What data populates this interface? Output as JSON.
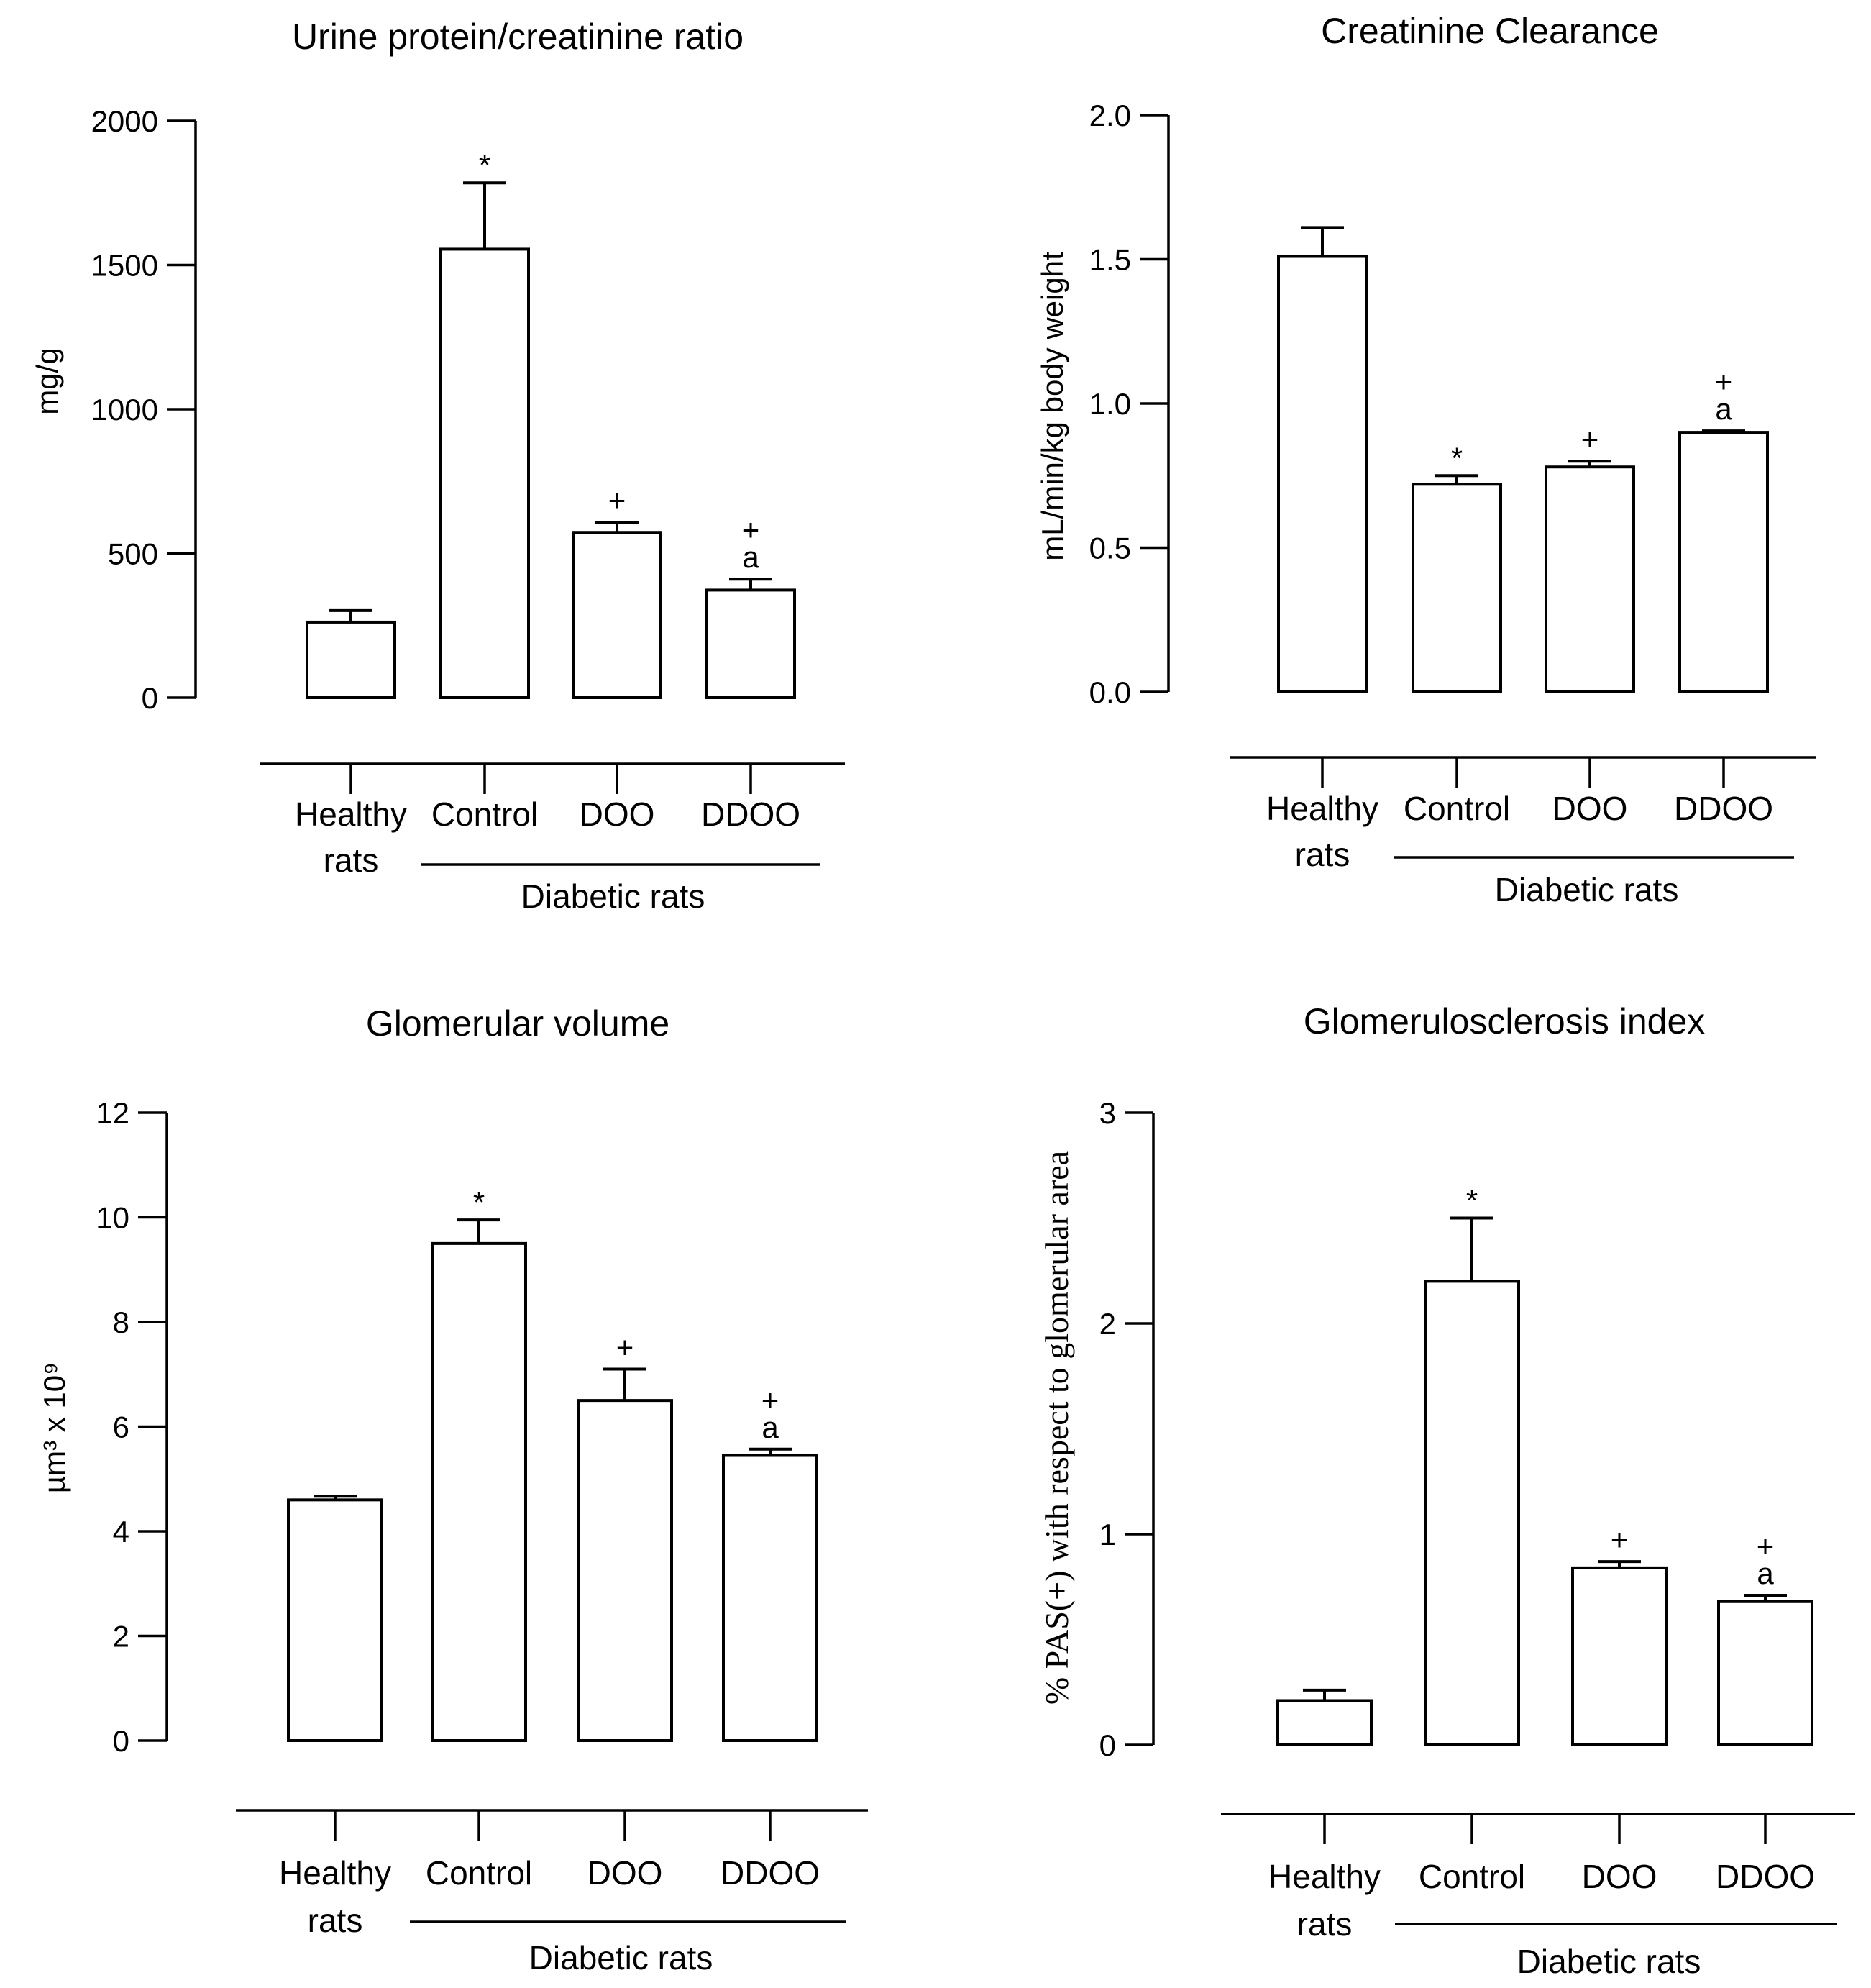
{
  "figure_title": "",
  "chart_data": [
    {
      "type": "bar",
      "title": "Urine protein/creatinine ratio",
      "ylabel": "mg/g",
      "ylim": [
        0,
        2000
      ],
      "yticks": [
        "0",
        "500",
        "1000",
        "1500",
        "2000"
      ],
      "ytick_values": [
        0,
        500,
        1000,
        1500,
        2000
      ],
      "categories": [
        "Healthy rats",
        "Control",
        "DOO",
        "DDOO"
      ],
      "category_lines": [
        [
          "Healthy",
          "rats"
        ],
        [
          "Control"
        ],
        [
          "DOO"
        ],
        [
          "DDOO"
        ]
      ],
      "values": [
        262,
        1555,
        573,
        373
      ],
      "errors": [
        40,
        230,
        35,
        38
      ],
      "significance": [
        [],
        [
          "*"
        ],
        [
          "+"
        ],
        [
          "+",
          "a"
        ]
      ],
      "group_label": "Diabetic rats"
    },
    {
      "type": "bar",
      "title": "Creatinine Clearance",
      "ylabel": "mL/min/kg body weight",
      "ylim": [
        0,
        2.0
      ],
      "yticks": [
        "0.0",
        "0.5",
        "1.0",
        "1.5",
        "2.0"
      ],
      "ytick_values": [
        0,
        0.5,
        1.0,
        1.5,
        2.0
      ],
      "categories": [
        "Healthy rats",
        "Control",
        "DOO",
        "DDOO"
      ],
      "category_lines": [
        [
          "Healthy",
          "rats"
        ],
        [
          "Control"
        ],
        [
          "DOO"
        ],
        [
          "DDOO"
        ]
      ],
      "values": [
        1.51,
        0.72,
        0.78,
        0.9
      ],
      "errors": [
        0.1,
        0.03,
        0.02,
        0.005
      ],
      "significance": [
        [],
        [
          "*"
        ],
        [
          "+"
        ],
        [
          "+",
          "a"
        ]
      ],
      "group_label": "Diabetic rats"
    },
    {
      "type": "bar",
      "title": "Glomerular volume",
      "ylabel": "µm³ x 10⁹",
      "ylim": [
        0,
        12
      ],
      "yticks": [
        "0",
        "2",
        "4",
        "6",
        "8",
        "10",
        "12"
      ],
      "ytick_values": [
        0,
        2,
        4,
        6,
        8,
        10,
        12
      ],
      "categories": [
        "Healthy rats",
        "Control",
        "DOO",
        "DDOO"
      ],
      "category_lines": [
        [
          "Healthy",
          "rats"
        ],
        [
          "Control"
        ],
        [
          "DOO"
        ],
        [
          "DDOO"
        ]
      ],
      "values": [
        4.6,
        9.5,
        6.5,
        5.45
      ],
      "errors": [
        0.07,
        0.45,
        0.6,
        0.12
      ],
      "significance": [
        [],
        [
          "*"
        ],
        [
          "+"
        ],
        [
          "+",
          "a"
        ]
      ],
      "group_label": "Diabetic rats"
    },
    {
      "type": "bar",
      "title": "Glomerulosclerosis index",
      "ylabel": "% PAS(+) with respect to glomerular area",
      "ylim": [
        0,
        3
      ],
      "yticks": [
        "0",
        "1",
        "2",
        "3"
      ],
      "ytick_values": [
        0,
        1,
        2,
        3
      ],
      "categories": [
        "Healthy rats",
        "Control",
        "DOO",
        "DDOO"
      ],
      "category_lines": [
        [
          "Healthy",
          "rats"
        ],
        [
          "Control"
        ],
        [
          "DOO"
        ],
        [
          "DDOO"
        ]
      ],
      "values": [
        0.21,
        2.2,
        0.84,
        0.68
      ],
      "errors": [
        0.05,
        0.3,
        0.03,
        0.03
      ],
      "significance": [
        [],
        [
          "*"
        ],
        [
          "+"
        ],
        [
          "+",
          "a"
        ]
      ],
      "group_label": "Diabetic rats"
    }
  ]
}
